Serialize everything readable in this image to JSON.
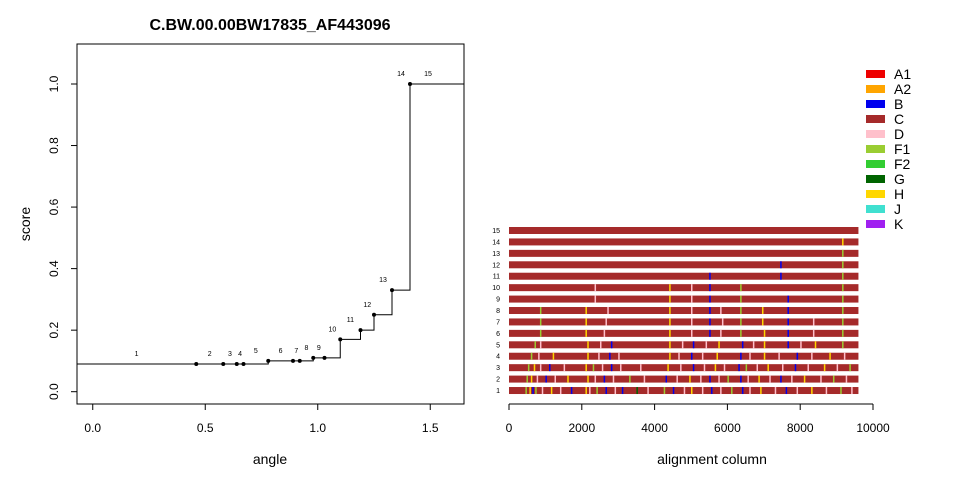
{
  "chart_data": [
    {
      "type": "line",
      "title": "C.BW.00.00BW17835_AF443096",
      "xlabel": "angle",
      "ylabel": "score",
      "xlim": [
        -0.07,
        1.65
      ],
      "ylim": [
        -0.04,
        1.13
      ],
      "xticks": [
        "0.0",
        "0.5",
        "1.0",
        "1.5"
      ],
      "yticks": [
        "0.0",
        "0.2",
        "0.4",
        "0.6",
        "0.8",
        "1.0"
      ],
      "steps": [
        {
          "label": "1",
          "x": 0.46,
          "y": 0.09
        },
        {
          "label": "2",
          "x": 0.58,
          "y": 0.09
        },
        {
          "label": "3",
          "x": 0.64,
          "y": 0.09
        },
        {
          "label": "4",
          "x": 0.67,
          "y": 0.09
        },
        {
          "label": "5",
          "x": 0.78,
          "y": 0.1
        },
        {
          "label": "6",
          "x": 0.89,
          "y": 0.1
        },
        {
          "label": "7",
          "x": 0.92,
          "y": 0.1
        },
        {
          "label": "8",
          "x": 0.98,
          "y": 0.11
        },
        {
          "label": "9",
          "x": 1.03,
          "y": 0.11
        },
        {
          "label": "10",
          "x": 1.1,
          "y": 0.17
        },
        {
          "label": "11",
          "x": 1.19,
          "y": 0.2
        },
        {
          "label": "12",
          "x": 1.25,
          "y": 0.25
        },
        {
          "label": "13",
          "x": 1.33,
          "y": 0.33
        },
        {
          "label": "14",
          "x": 1.41,
          "y": 1.0
        },
        {
          "label": "15",
          "x": 1.65,
          "y": 1.0
        }
      ]
    },
    {
      "type": "heatmap",
      "xlabel": "alignment column",
      "xlim": [
        0,
        10000
      ],
      "xticks": [
        "0",
        "2000",
        "4000",
        "6000",
        "8000",
        "10000"
      ],
      "row_count": 15,
      "row_length": 9600,
      "base_color": "#a52a2a",
      "rows": [
        {
          "label": "1",
          "marks": [
            [
              450,
              "#9acd32"
            ],
            [
              560,
              "#ffd700"
            ],
            [
              640,
              "#0000ee"
            ],
            [
              720,
              "#9acd32"
            ],
            [
              900,
              "#ffc0cb"
            ],
            [
              1150,
              "#ffd700"
            ],
            [
              1400,
              "#ffc0cb"
            ],
            [
              1700,
              "#0000ee"
            ],
            [
              2100,
              "#ffd700"
            ],
            [
              2200,
              "#ffc0cb"
            ],
            [
              2400,
              "#9acd32"
            ],
            [
              2650,
              "#0000ee"
            ],
            [
              2900,
              "#ffc0cb"
            ],
            [
              3100,
              "#0000ee"
            ],
            [
              3500,
              "#006400"
            ],
            [
              3800,
              "#ffc0cb"
            ],
            [
              4250,
              "#9acd32"
            ],
            [
              4500,
              "#0000ee"
            ],
            [
              4800,
              "#ffc0cb"
            ],
            [
              5000,
              "#ffd700"
            ],
            [
              5300,
              "#ffc0cb"
            ],
            [
              5550,
              "#0000ee"
            ],
            [
              5800,
              "#ffc0cb"
            ],
            [
              6100,
              "#9acd32"
            ],
            [
              6400,
              "#0000ee"
            ],
            [
              6600,
              "#ffc0cb"
            ],
            [
              6900,
              "#ffd700"
            ],
            [
              7300,
              "#ffc0cb"
            ],
            [
              7600,
              "#0000ee"
            ],
            [
              7900,
              "#ffc0cb"
            ],
            [
              8300,
              "#ffd700"
            ],
            [
              8700,
              "#ffc0cb"
            ],
            [
              9100,
              "#9acd32"
            ],
            [
              9400,
              "#ffc0cb"
            ]
          ]
        },
        {
          "label": "2",
          "marks": [
            [
              480,
              "#9acd32"
            ],
            [
              600,
              "#ffd700"
            ],
            [
              760,
              "#ffc0cb"
            ],
            [
              1000,
              "#0000ee"
            ],
            [
              1250,
              "#ffc0cb"
            ],
            [
              1600,
              "#ffd700"
            ],
            [
              2150,
              "#ffd700"
            ],
            [
              2350,
              "#ffc0cb"
            ],
            [
              2600,
              "#0000ee"
            ],
            [
              2850,
              "#ffc0cb"
            ],
            [
              3300,
              "#9acd32"
            ],
            [
              3700,
              "#ffc0cb"
            ],
            [
              4300,
              "#0000ee"
            ],
            [
              4600,
              "#ffc0cb"
            ],
            [
              4950,
              "#ffd700"
            ],
            [
              5250,
              "#ffc0cb"
            ],
            [
              5500,
              "#0000ee"
            ],
            [
              5750,
              "#ffc0cb"
            ],
            [
              6000,
              "#9acd32"
            ],
            [
              6350,
              "#0000ee"
            ],
            [
              6550,
              "#ffc0cb"
            ],
            [
              6850,
              "#ffd700"
            ],
            [
              7150,
              "#ffc0cb"
            ],
            [
              7450,
              "#0000ee"
            ],
            [
              7750,
              "#ffc0cb"
            ],
            [
              8100,
              "#ffd700"
            ],
            [
              8550,
              "#ffc0cb"
            ],
            [
              8900,
              "#9acd32"
            ],
            [
              9250,
              "#ffc0cb"
            ]
          ]
        },
        {
          "label": "3",
          "marks": [
            [
              520,
              "#9acd32"
            ],
            [
              680,
              "#ffd700"
            ],
            [
              850,
              "#ffc0cb"
            ],
            [
              1100,
              "#0000ee"
            ],
            [
              1500,
              "#ffc0cb"
            ],
            [
              2100,
              "#ffd700"
            ],
            [
              2300,
              "#9acd32"
            ],
            [
              2550,
              "#ffc0cb"
            ],
            [
              2800,
              "#0000ee"
            ],
            [
              3050,
              "#ffc0cb"
            ],
            [
              3600,
              "#ffc0cb"
            ],
            [
              4350,
              "#ffd700"
            ],
            [
              4700,
              "#ffc0cb"
            ],
            [
              5050,
              "#0000ee"
            ],
            [
              5350,
              "#ffc0cb"
            ],
            [
              5650,
              "#ffd700"
            ],
            [
              5900,
              "#ffc0cb"
            ],
            [
              6300,
              "#0000ee"
            ],
            [
              6500,
              "#9acd32"
            ],
            [
              6800,
              "#ffc0cb"
            ],
            [
              7100,
              "#ffd700"
            ],
            [
              7500,
              "#ffc0cb"
            ],
            [
              7850,
              "#0000ee"
            ],
            [
              8200,
              "#ffc0cb"
            ],
            [
              8650,
              "#ffd700"
            ],
            [
              9000,
              "#ffc0cb"
            ],
            [
              9350,
              "#9acd32"
            ]
          ]
        },
        {
          "label": "4",
          "marks": [
            [
              600,
              "#9acd32"
            ],
            [
              800,
              "#ffc0cb"
            ],
            [
              1200,
              "#ffd700"
            ],
            [
              2150,
              "#ffd700"
            ],
            [
              2450,
              "#ffc0cb"
            ],
            [
              2750,
              "#0000ee"
            ],
            [
              3000,
              "#ffc0cb"
            ],
            [
              4400,
              "#ffd700"
            ],
            [
              4650,
              "#ffc0cb"
            ],
            [
              5000,
              "#0000ee"
            ],
            [
              5300,
              "#ffc0cb"
            ],
            [
              5700,
              "#ffd700"
            ],
            [
              6350,
              "#0000ee"
            ],
            [
              6600,
              "#ffc0cb"
            ],
            [
              7000,
              "#ffd700"
            ],
            [
              7400,
              "#ffc0cb"
            ],
            [
              7900,
              "#0000ee"
            ],
            [
              8300,
              "#ffc0cb"
            ],
            [
              8800,
              "#ffd700"
            ],
            [
              9200,
              "#ffc0cb"
            ]
          ]
        },
        {
          "label": "5",
          "marks": [
            [
              700,
              "#9acd32"
            ],
            [
              850,
              "#ffc0cb"
            ],
            [
              2150,
              "#ffd700"
            ],
            [
              2500,
              "#ffc0cb"
            ],
            [
              2800,
              "#0000ee"
            ],
            [
              4400,
              "#ffd700"
            ],
            [
              4750,
              "#ffc0cb"
            ],
            [
              5050,
              "#0000ee"
            ],
            [
              5400,
              "#ffc0cb"
            ],
            [
              5750,
              "#ffd700"
            ],
            [
              6400,
              "#0000ee"
            ],
            [
              6700,
              "#ffc0cb"
            ],
            [
              7000,
              "#ffd700"
            ],
            [
              7650,
              "#0000ee"
            ],
            [
              8000,
              "#ffc0cb"
            ],
            [
              8400,
              "#ffd700"
            ],
            [
              9150,
              "#9acd32"
            ]
          ]
        },
        {
          "label": "6",
          "marks": [
            [
              850,
              "#9acd32"
            ],
            [
              2100,
              "#ffd700"
            ],
            [
              2600,
              "#ffc0cb"
            ],
            [
              4400,
              "#ffd700"
            ],
            [
              5000,
              "#ffc0cb"
            ],
            [
              5500,
              "#0000ee"
            ],
            [
              5800,
              "#ffc0cb"
            ],
            [
              6350,
              "#9acd32"
            ],
            [
              7000,
              "#ffd700"
            ],
            [
              7650,
              "#0000ee"
            ],
            [
              8350,
              "#ffc0cb"
            ],
            [
              9150,
              "#9acd32"
            ]
          ]
        },
        {
          "label": "7",
          "marks": [
            [
              850,
              "#9acd32"
            ],
            [
              2100,
              "#ffd700"
            ],
            [
              2650,
              "#ffc0cb"
            ],
            [
              4400,
              "#ffd700"
            ],
            [
              5000,
              "#ffc0cb"
            ],
            [
              5500,
              "#0000ee"
            ],
            [
              5850,
              "#ffc0cb"
            ],
            [
              6350,
              "#9acd32"
            ],
            [
              6950,
              "#ffd700"
            ],
            [
              7650,
              "#0000ee"
            ],
            [
              8350,
              "#ffc0cb"
            ],
            [
              9150,
              "#9acd32"
            ]
          ]
        },
        {
          "label": "8",
          "marks": [
            [
              850,
              "#9acd32"
            ],
            [
              2100,
              "#ffd700"
            ],
            [
              2700,
              "#ffc0cb"
            ],
            [
              4400,
              "#ffd700"
            ],
            [
              5000,
              "#ffc0cb"
            ],
            [
              5500,
              "#0000ee"
            ],
            [
              5800,
              "#ffc0cb"
            ],
            [
              6350,
              "#9acd32"
            ],
            [
              6950,
              "#ffd700"
            ],
            [
              7650,
              "#0000ee"
            ],
            [
              9150,
              "#9acd32"
            ]
          ]
        },
        {
          "label": "9",
          "marks": [
            [
              2350,
              "#ffc0cb"
            ],
            [
              4400,
              "#ffd700"
            ],
            [
              5000,
              "#ffc0cb"
            ],
            [
              5500,
              "#0000ee"
            ],
            [
              6350,
              "#9acd32"
            ],
            [
              7650,
              "#0000ee"
            ],
            [
              9150,
              "#9acd32"
            ]
          ]
        },
        {
          "label": "10",
          "marks": [
            [
              2350,
              "#ffc0cb"
            ],
            [
              4400,
              "#ffd700"
            ],
            [
              5000,
              "#ffc0cb"
            ],
            [
              5500,
              "#0000ee"
            ],
            [
              6350,
              "#9acd32"
            ],
            [
              9150,
              "#9acd32"
            ]
          ]
        },
        {
          "label": "11",
          "marks": [
            [
              5500,
              "#0000ee"
            ],
            [
              7450,
              "#0000ee"
            ],
            [
              9150,
              "#9acd32"
            ]
          ]
        },
        {
          "label": "12",
          "marks": [
            [
              7450,
              "#0000ee"
            ],
            [
              9150,
              "#9acd32"
            ]
          ]
        },
        {
          "label": "13",
          "marks": [
            [
              9150,
              "#9acd32"
            ]
          ]
        },
        {
          "label": "14",
          "marks": [
            [
              9150,
              "#ffd700"
            ]
          ]
        },
        {
          "label": "15",
          "marks": []
        }
      ]
    }
  ],
  "legend": [
    {
      "label": "A1",
      "color": "#ee0000"
    },
    {
      "label": "A2",
      "color": "#ffa500"
    },
    {
      "label": "B",
      "color": "#0000ee"
    },
    {
      "label": "C",
      "color": "#a52a2a"
    },
    {
      "label": "D",
      "color": "#ffc0cb"
    },
    {
      "label": "F1",
      "color": "#9acd32"
    },
    {
      "label": "F2",
      "color": "#32cd32"
    },
    {
      "label": "G",
      "color": "#006400"
    },
    {
      "label": "H",
      "color": "#ffd700"
    },
    {
      "label": "J",
      "color": "#40e0d0"
    },
    {
      "label": "K",
      "color": "#a020f0"
    }
  ]
}
